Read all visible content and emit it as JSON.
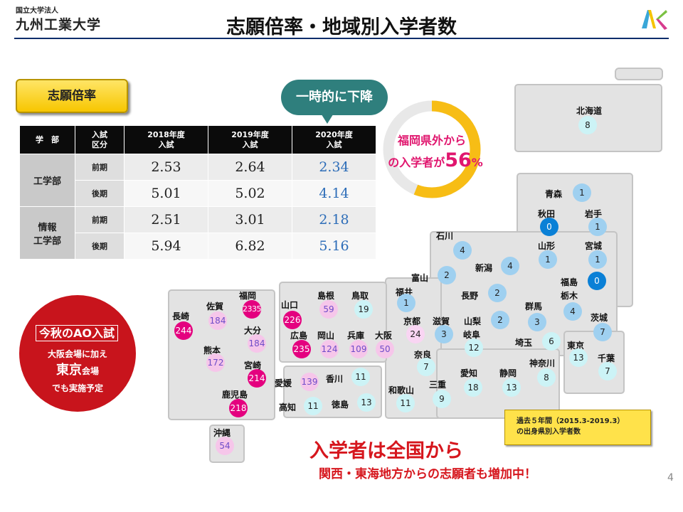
{
  "header": {
    "subtitle": "国立大学法人",
    "university": "九州工業大学",
    "title": "志願倍率・地域別入学者数"
  },
  "ratio_section": {
    "label": "志願倍率",
    "table": {
      "headers": [
        "学　部",
        "入試\n区分",
        "2018年度\n入試",
        "2019年度\n入試",
        "2020年度\n入試"
      ],
      "rows": [
        {
          "dept": "工学部",
          "term": "前期",
          "v2018": "2.53",
          "v2019": "2.64",
          "v2020": "2.34"
        },
        {
          "dept": "",
          "term": "後期",
          "v2018": "5.01",
          "v2019": "5.02",
          "v2020": "4.14"
        },
        {
          "dept": "情報\n工学部",
          "term": "前期",
          "v2018": "2.51",
          "v2019": "3.01",
          "v2020": "2.18"
        },
        {
          "dept": "",
          "term": "後期",
          "v2018": "5.94",
          "v2019": "6.82",
          "v2020": "5.16"
        }
      ]
    },
    "callout": "一時的に下降"
  },
  "ring": {
    "line1": "福岡県外から",
    "line2_prefix": "の入学者が",
    "percent": "56",
    "percent_sign": "%",
    "fraction": 0.56,
    "color_fill": "#f7bd15",
    "color_track": "#e8e8e8"
  },
  "map": {
    "prefectures": [
      {
        "name": "北海道",
        "count": "8",
        "style": "c-lt"
      },
      {
        "name": "青森",
        "count": "1",
        "style": "c-bl"
      },
      {
        "name": "秋田",
        "count": "0",
        "style": "c-db"
      },
      {
        "name": "岩手",
        "count": "1",
        "style": "c-bl"
      },
      {
        "name": "山形",
        "count": "1",
        "style": "c-bl"
      },
      {
        "name": "宮城",
        "count": "1",
        "style": "c-bl"
      },
      {
        "name": "福島",
        "count": "0",
        "style": "c-db"
      },
      {
        "name": "石川",
        "count": "4",
        "style": "c-bl"
      },
      {
        "name": "富山",
        "count": "2",
        "style": "c-bl"
      },
      {
        "name": "新潟",
        "count": "4",
        "style": "c-bl"
      },
      {
        "name": "栃木",
        "count": "4",
        "style": "c-bl"
      },
      {
        "name": "福井",
        "count": "1",
        "style": "c-bl"
      },
      {
        "name": "長野",
        "count": "2",
        "style": "c-bl"
      },
      {
        "name": "群馬",
        "count": "3",
        "style": "c-bl"
      },
      {
        "name": "茨城",
        "count": "7",
        "style": "c-bl"
      },
      {
        "name": "京都",
        "count": "24",
        "style": "c-pale"
      },
      {
        "name": "滋賀",
        "count": "3",
        "style": "c-bl"
      },
      {
        "name": "山梨",
        "count": "2",
        "style": "c-bl"
      },
      {
        "name": "岐阜",
        "count": "12",
        "style": "c-lt"
      },
      {
        "name": "埼玉",
        "count": "6",
        "style": "c-lt"
      },
      {
        "name": "東京",
        "count": "13",
        "style": "c-lt"
      },
      {
        "name": "千葉",
        "count": "7",
        "style": "c-lt"
      },
      {
        "name": "奈良",
        "count": "7",
        "style": "c-lt"
      },
      {
        "name": "神奈川",
        "count": "8",
        "style": "c-lt"
      },
      {
        "name": "愛知",
        "count": "18",
        "style": "c-lt"
      },
      {
        "name": "静岡",
        "count": "13",
        "style": "c-lt"
      },
      {
        "name": "三重",
        "count": "9",
        "style": "c-lt"
      },
      {
        "name": "和歌山",
        "count": "11",
        "style": "c-lt"
      },
      {
        "name": "島根",
        "count": "59",
        "style": "c-pink"
      },
      {
        "name": "鳥取",
        "count": "19",
        "style": "c-lt"
      },
      {
        "name": "山口",
        "count": "226",
        "style": "c-mag"
      },
      {
        "name": "広島",
        "count": "235",
        "style": "c-mag"
      },
      {
        "name": "岡山",
        "count": "124",
        "style": "c-pink"
      },
      {
        "name": "兵庫",
        "count": "109",
        "style": "c-pink"
      },
      {
        "name": "大阪",
        "count": "50",
        "style": "c-pink"
      },
      {
        "name": "香川",
        "count": "11",
        "style": "c-lt"
      },
      {
        "name": "愛媛",
        "count": "139",
        "style": "c-pink"
      },
      {
        "name": "高知",
        "count": "11",
        "style": "c-lt"
      },
      {
        "name": "徳島",
        "count": "13",
        "style": "c-lt"
      },
      {
        "name": "福岡",
        "count": "2335",
        "style": "c-mag"
      },
      {
        "name": "佐賀",
        "count": "184",
        "style": "c-pink"
      },
      {
        "name": "長崎",
        "count": "244",
        "style": "c-mag"
      },
      {
        "name": "大分",
        "count": "184",
        "style": "c-pink"
      },
      {
        "name": "熊本",
        "count": "172",
        "style": "c-pink"
      },
      {
        "name": "宮崎",
        "count": "214",
        "style": "c-mag"
      },
      {
        "name": "鹿児島",
        "count": "218",
        "style": "c-mag"
      },
      {
        "name": "沖縄",
        "count": "54",
        "style": "c-pink"
      }
    ]
  },
  "ao": {
    "title": "今秋のAO入試",
    "line1": "大阪会場に加え",
    "line2_big": "東京",
    "line2_small": "会場",
    "line3": "でも実施予定"
  },
  "note": {
    "line1": "過去５年間（2015.3-2019.3）",
    "line2": "の出身県別入学者数"
  },
  "message": {
    "main": "入学者は全国から",
    "sub": "関西・東海地方からの志願者も増加中！"
  },
  "page_number": "4"
}
